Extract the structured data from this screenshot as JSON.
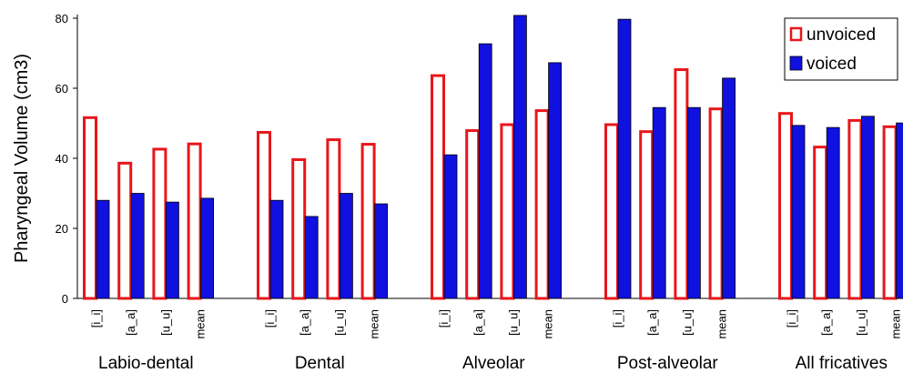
{
  "chart_data": {
    "type": "bar",
    "y_label": "Pharyngeal Volume (cm3)",
    "groups": [
      "Labio-dental",
      "Dental",
      "Alveolar",
      "Post-alveolar",
      "All fricatives"
    ],
    "categories": [
      "[i_i]",
      "[a_a]",
      "[u_u]",
      "mean",
      "[i_i]",
      "[a_a]",
      "[u_u]",
      "mean",
      "[i_i]",
      "[a_a]",
      "[u_u]",
      "mean",
      "[i_i]",
      "[a_a]",
      "[u_u]",
      "mean",
      "[i_i]",
      "[a_a]",
      "[u_u]",
      "mean"
    ],
    "series": [
      {
        "name": "unvoiced",
        "color": "#e8161b",
        "values": [
          52,
          39,
          43,
          44.5,
          47.8,
          40,
          45.7,
          44.4,
          64,
          48.3,
          50,
          54,
          50,
          48,
          65.7,
          54.5,
          53.2,
          43.6,
          51.2,
          49.4
        ]
      },
      {
        "name": "voiced",
        "color": "#1010e0",
        "values": [
          28,
          30,
          27.5,
          28.6,
          28,
          23.4,
          30,
          27,
          41,
          72.7,
          80.8,
          67.3,
          79.7,
          54.5,
          54.5,
          62.9,
          49.4,
          48.8,
          52,
          50.1
        ]
      }
    ],
    "ylim": [
      0,
      80
    ],
    "yticks": [
      0,
      20,
      40,
      60,
      80
    ],
    "legend": "top-right"
  }
}
